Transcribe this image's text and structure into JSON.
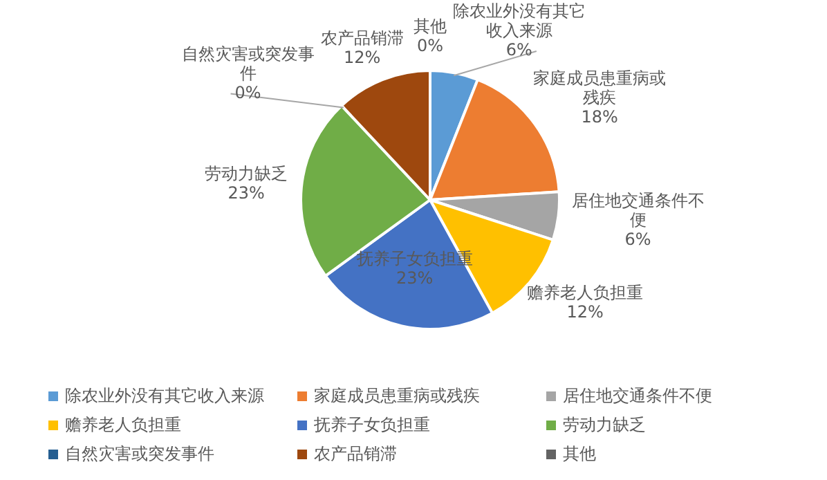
{
  "chart_data": {
    "type": "pie",
    "categories": [
      "除农业外没有其它收入来源",
      "家庭成员患重病或残疾",
      "居住地交通条件不便",
      "赡养老人负担重",
      "抚养子女负担重",
      "劳动力缺乏",
      "自然灾害或突发事件",
      "农产品销滞",
      "其他"
    ],
    "values": [
      6,
      18,
      6,
      12,
      23,
      23,
      0,
      12,
      0
    ],
    "colors": [
      "#5b9bd5",
      "#ed7d31",
      "#a5a5a5",
      "#ffc000",
      "#4472c4",
      "#70ad47",
      "#255e91",
      "#9e480e",
      "#636363"
    ],
    "value_labels": [
      "6%",
      "18%",
      "6%",
      "12%",
      "23%",
      "23%",
      "0%",
      "12%",
      "0%"
    ],
    "legend": "bottom"
  }
}
